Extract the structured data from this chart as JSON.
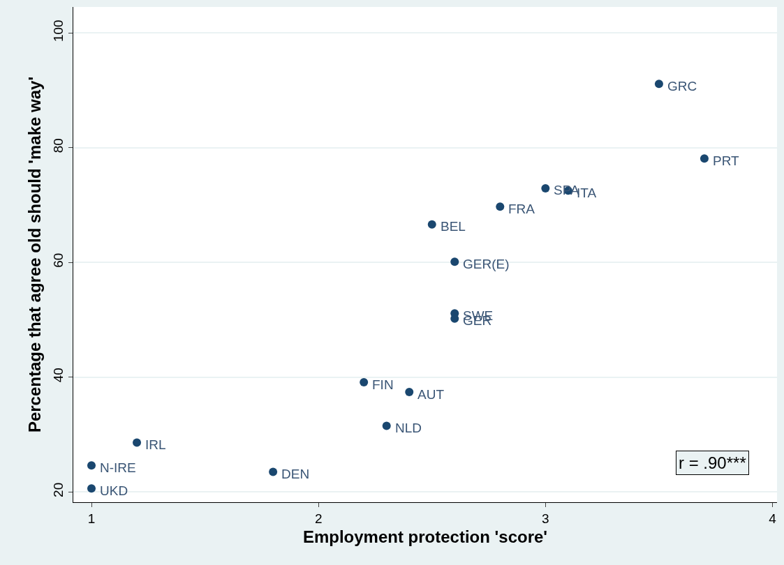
{
  "chart_data": {
    "type": "scatter",
    "xlabel": "Employment protection 'score'",
    "ylabel": "Percentage that agree old should 'make way'",
    "x": [
      3.5,
      3.7,
      3.0,
      3.1,
      2.8,
      2.5,
      2.6,
      2.6,
      2.6,
      2.2,
      2.4,
      2.3,
      1.2,
      1.0,
      1.8,
      1.0
    ],
    "values": [
      91.1,
      78.1,
      72.9,
      72.5,
      69.7,
      66.6,
      60.1,
      51.1,
      50.2,
      39.1,
      37.4,
      31.5,
      28.6,
      24.6,
      23.5,
      20.6
    ],
    "color": "#1a476f",
    "marker": "circle",
    "grid": "y",
    "xlim": [
      0.92,
      4.02
    ],
    "xticks": [
      1,
      2,
      3,
      4
    ],
    "ylim": [
      18.2,
      104.5
    ],
    "yticks": [
      20,
      40,
      60,
      80,
      100
    ],
    "annotations": [
      {
        "text": "GRC",
        "x": 3.5,
        "y": 91.1
      },
      {
        "text": "PRT",
        "x": 3.7,
        "y": 78.1
      },
      {
        "text": "SPA",
        "x": 3.0,
        "y": 72.9
      },
      {
        "text": "ITA",
        "x": 3.1,
        "y": 72.5
      },
      {
        "text": "FRA",
        "x": 2.8,
        "y": 69.7
      },
      {
        "text": "BEL",
        "x": 2.5,
        "y": 66.6
      },
      {
        "text": "GER(E)",
        "x": 2.6,
        "y": 60.1
      },
      {
        "text": "SWE",
        "x": 2.6,
        "y": 51.1
      },
      {
        "text": "GER",
        "x": 2.6,
        "y": 50.2
      },
      {
        "text": "FIN",
        "x": 2.2,
        "y": 39.1
      },
      {
        "text": "AUT",
        "x": 2.4,
        "y": 37.4
      },
      {
        "text": "NLD",
        "x": 2.3,
        "y": 31.5
      },
      {
        "text": "IRL",
        "x": 1.2,
        "y": 28.6
      },
      {
        "text": "N-IRE",
        "x": 1.0,
        "y": 24.6
      },
      {
        "text": "DEN",
        "x": 1.8,
        "y": 23.5
      },
      {
        "text": "UKD",
        "x": 1.0,
        "y": 20.6
      },
      "r = .90***"
    ]
  }
}
